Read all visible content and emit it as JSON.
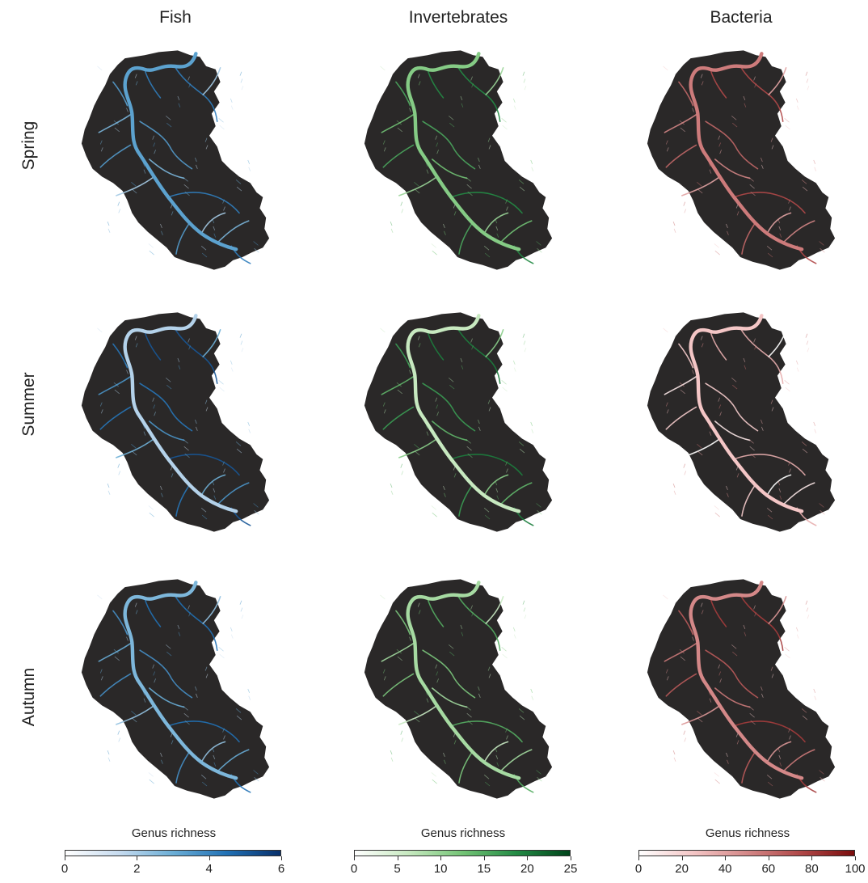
{
  "columns": [
    {
      "title": "Fish",
      "scheme": "blues",
      "colors": [
        "#ffffff",
        "#c6dbef",
        "#6baed6",
        "#2171b5",
        "#08306b"
      ]
    },
    {
      "title": "Invertebrates",
      "scheme": "greens",
      "colors": [
        "#ffffff",
        "#c7e9c0",
        "#74c476",
        "#238b45",
        "#00441b"
      ]
    },
    {
      "title": "Bacteria",
      "scheme": "reds",
      "colors": [
        "#ffffff",
        "#f4c6c6",
        "#d48888",
        "#b04848",
        "#7a0c0c"
      ]
    }
  ],
  "rows": [
    {
      "title": "Spring"
    },
    {
      "title": "Summer"
    },
    {
      "title": "Autumn"
    }
  ],
  "map_background": "#2a2828",
  "legends": [
    {
      "title": "Genus richness",
      "ticks": [
        "0",
        "2",
        "4",
        "6"
      ],
      "range": [
        0,
        6
      ]
    },
    {
      "title": "Genus richness",
      "ticks": [
        "0",
        "5",
        "10",
        "15",
        "20",
        "25"
      ],
      "range": [
        0,
        25
      ]
    },
    {
      "title": "Genus richness",
      "ticks": [
        "0",
        "20",
        "40",
        "60",
        "80",
        "100"
      ],
      "range": [
        0,
        100
      ]
    }
  ]
}
